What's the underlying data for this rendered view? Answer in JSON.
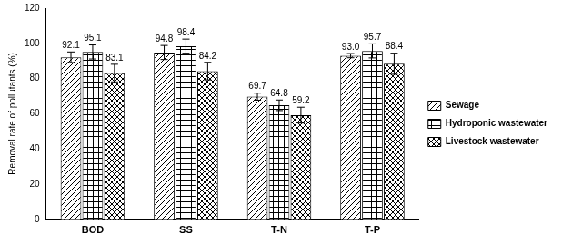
{
  "chart_data": {
    "type": "bar",
    "y_label": "Removal rate of pollutants (%)",
    "categories": [
      "BOD",
      "SS",
      "T-N",
      "T-P"
    ],
    "series": [
      {
        "name": "Sewage",
        "color": "#000000",
        "values": [
          92.1,
          94.8,
          69.7,
          93.0
        ],
        "value_labels": [
          "92.1",
          "94.8",
          "69.7",
          "93.0"
        ],
        "errors": [
          3,
          4,
          2,
          1.2
        ]
      },
      {
        "name": "Hydroponic wastewater",
        "color": "#000000",
        "values": [
          95.1,
          98.4,
          64.8,
          95.7
        ],
        "value_labels": [
          "95.1",
          "98.4",
          "64.8",
          "95.7"
        ],
        "errors": [
          4,
          4,
          3,
          4
        ]
      },
      {
        "name": "Livestock wastewater",
        "color": "#000000",
        "values": [
          83.1,
          84.2,
          59.2,
          88.4
        ],
        "value_labels": [
          "83.1",
          "84.2",
          "59.2",
          "88.4"
        ],
        "errors": [
          5,
          5,
          4.5,
          6
        ]
      }
    ],
    "ylim": [
      0,
      120
    ],
    "yticks": [
      0,
      20,
      40,
      60,
      80,
      100,
      120
    ],
    "grid": false,
    "legend": "right",
    "data_labels": true
  }
}
